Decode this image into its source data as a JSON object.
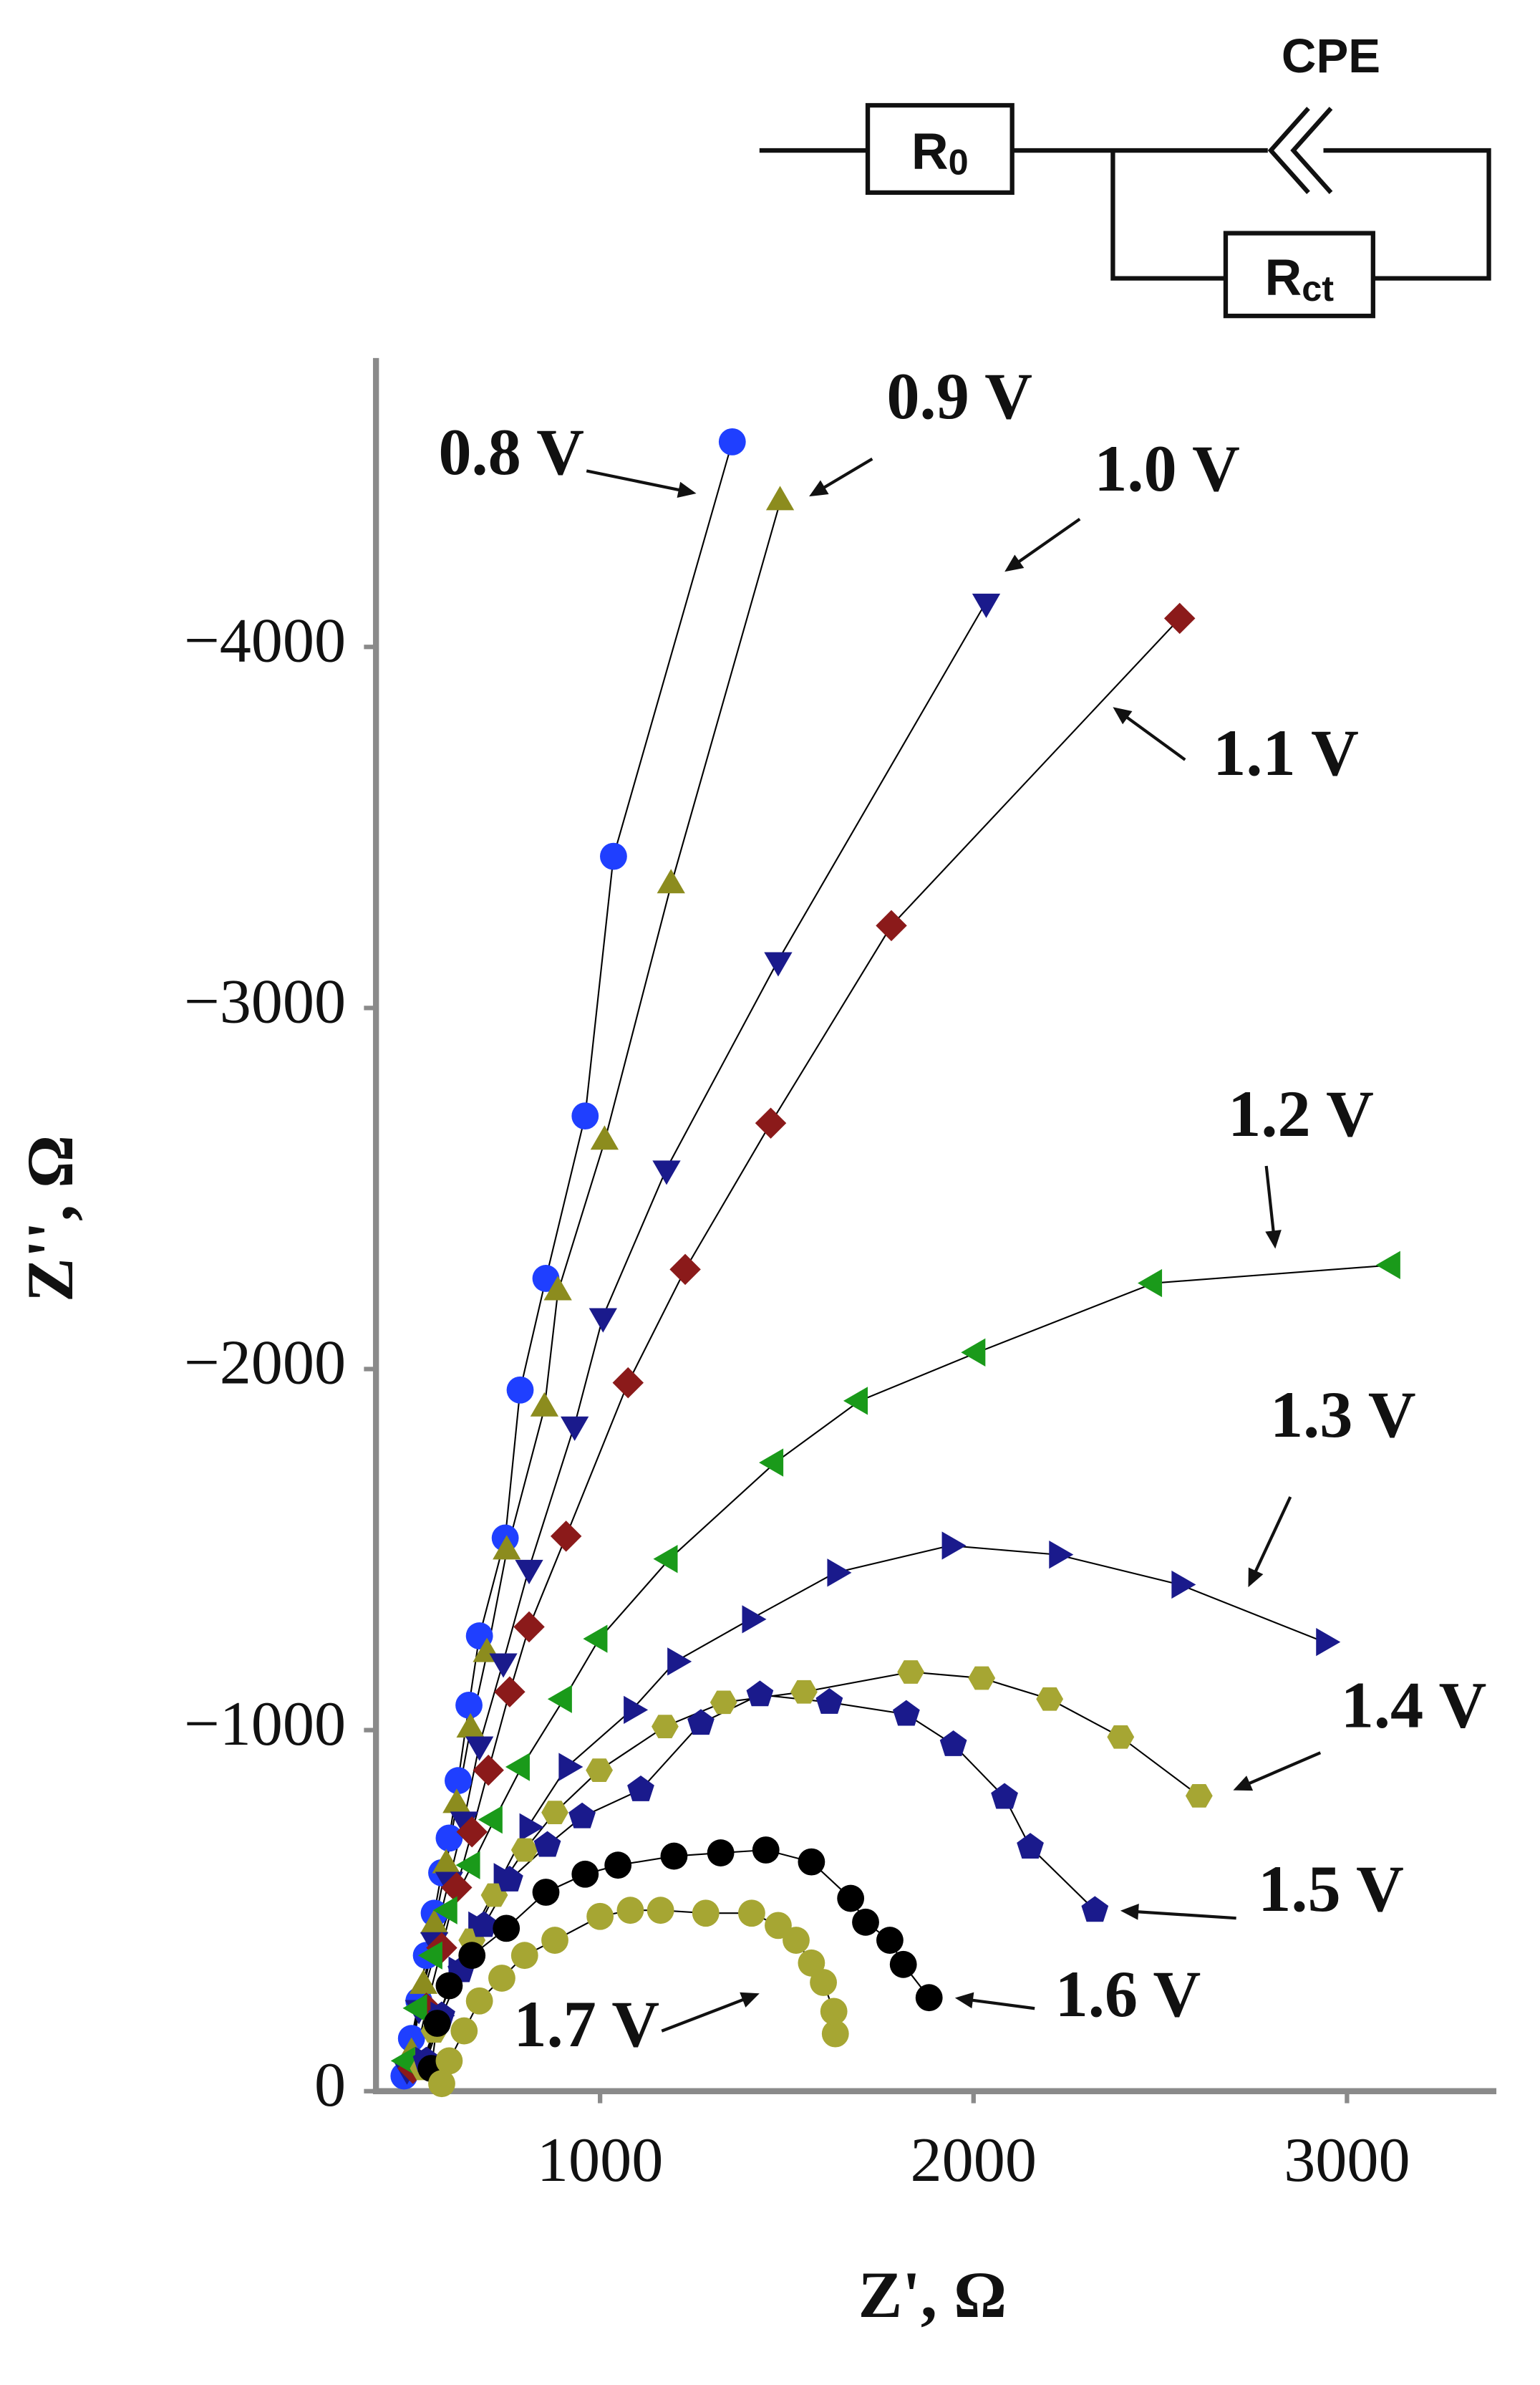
{
  "chart_data": {
    "type": "scatter",
    "xlabel": "Z', Ω",
    "ylabel": "Z'', Ω",
    "xlim": [
      400,
      3400
    ],
    "ylim": [
      0,
      -4800
    ],
    "xticks": [
      1000,
      2000,
      3000
    ],
    "yticks": [
      0,
      {
        "value": -1000,
        "label": "−1000"
      },
      {
        "value": -2000,
        "label": "−2000"
      },
      {
        "value": -3000,
        "label": "−3000"
      },
      {
        "value": -4000,
        "label": "−4000"
      }
    ],
    "fit_line_color": "#000000",
    "series": [
      {
        "name": "0.8 V",
        "color": "#1f3fff",
        "marker": "circle",
        "x": [
          1354,
          1036,
          960,
          855,
          786,
          746,
          677,
          649,
          620,
          596,
          576,
          556,
          535,
          515,
          495,
          475
        ],
        "values": [
          -4568,
          -3420,
          -2701,
          -2251,
          -1942,
          -1532,
          -1261,
          -1069,
          -860,
          -701,
          -605,
          -493,
          -376,
          -250,
          -146,
          -42
        ]
      },
      {
        "name": "0.9 V",
        "color": "#8c8c1e",
        "marker": "triangle-up",
        "x": [
          1482,
          1190,
          1012,
          887,
          851,
          750,
          697,
          653,
          616,
          588,
          556,
          527,
          495
        ],
        "values": [
          -4401,
          -3340,
          -2630,
          -2213,
          -1891,
          -1495,
          -1211,
          -1002,
          -793,
          -626,
          -459,
          -292,
          -104
        ]
      },
      {
        "name": "1.0 V",
        "color": "#1a1a8c",
        "marker": "triangle-down",
        "x": [
          2034,
          1477,
          1178,
          1008,
          932,
          810,
          741,
          677,
          636,
          596,
          556,
          515,
          483
        ],
        "values": [
          -4125,
          -3132,
          -2555,
          -2146,
          -1846,
          -1449,
          -1190,
          -960,
          -752,
          -585,
          -418,
          -230,
          -63
        ]
      },
      {
        "name": "1.1 V",
        "color": "#8b1a1a",
        "marker": "diamond",
        "x": [
          2552,
          1780,
          1457,
          1228,
          1075,
          909,
          810,
          758,
          701,
          657,
          616,
          576,
          535,
          499
        ],
        "values": [
          -4079,
          -3228,
          -2681,
          -2276,
          -1962,
          -1537,
          -1286,
          -1106,
          -889,
          -718,
          -564,
          -397,
          -230,
          -63
        ]
      },
      {
        "name": "1.2 V",
        "color": "#1a9a1a",
        "marker": "triangle-left",
        "x": [
          3121,
          2483,
          2010,
          1695,
          1469,
          1186,
          998,
          903,
          790,
          717,
          657,
          596,
          556,
          515,
          483
        ],
        "values": [
          -2288,
          -2238,
          -2046,
          -1912,
          -1741,
          -1474,
          -1253,
          -1086,
          -898,
          -752,
          -626,
          -501,
          -376,
          -230,
          -84
        ]
      },
      {
        "name": "1.3 V",
        "color": "#1a1a8c",
        "marker": "triangle-right",
        "x": [
          2939,
          2552,
          2224,
          1937,
          1630,
          1402,
          1202,
          1085,
          911,
          806,
          737,
          669,
          616,
          568,
          527
        ],
        "values": [
          -1244,
          -1403,
          -1486,
          -1511,
          -1436,
          -1307,
          -1190,
          -1056,
          -898,
          -731,
          -593,
          -459,
          -334,
          -209,
          -84
        ]
      },
      {
        "name": "1.4 V",
        "color": "#a6a633",
        "marker": "hexagon",
        "x": [
          2604,
          2394,
          2204,
          2022,
          1832,
          1546,
          1331,
          1174,
          998,
          879,
          798,
          717,
          657,
          596,
          556,
          527
        ],
        "values": [
          -818,
          -981,
          -1086,
          -1144,
          -1161,
          -1106,
          -1077,
          -1010,
          -889,
          -772,
          -668,
          -543,
          -418,
          -292,
          -167,
          -63
        ]
      },
      {
        "name": "1.5 V",
        "color": "#1a1a8c",
        "marker": "pentagon",
        "x": [
          2325,
          2152,
          2083,
          1946,
          1820,
          1614,
          1428,
          1270,
          1109,
          952,
          859,
          758,
          689,
          628,
          576,
          535
        ],
        "values": [
          -501,
          -676,
          -814,
          -960,
          -1044,
          -1077,
          -1098,
          -1019,
          -835,
          -760,
          -681,
          -585,
          -459,
          -334,
          -209,
          -84
        ]
      },
      {
        "name": "1.6 V",
        "color": "#000000",
        "marker": "circle",
        "x": [
          1881,
          1812,
          1776,
          1711,
          1671,
          1566,
          1444,
          1323,
          1198,
          1048,
          960,
          855,
          749,
          657,
          596,
          564,
          548
        ],
        "values": [
          -259,
          -351,
          -418,
          -468,
          -534,
          -635,
          -668,
          -660,
          -651,
          -626,
          -601,
          -551,
          -451,
          -376,
          -292,
          -188,
          -63
        ]
      },
      {
        "name": "1.7 V",
        "color": "#a6a633",
        "marker": "circle",
        "x": [
          1630,
          1626,
          1598,
          1566,
          1525,
          1477,
          1406,
          1283,
          1162,
          1081,
          1000,
          879,
          798,
          737,
          677,
          636,
          596,
          576
        ],
        "values": [
          -159,
          -221,
          -301,
          -355,
          -418,
          -459,
          -493,
          -493,
          -501,
          -501,
          -484,
          -418,
          -376,
          -313,
          -250,
          -167,
          -84,
          -21
        ]
      }
    ]
  },
  "circuit": {
    "cpe": "CPE",
    "r0": {
      "main": "R",
      "sub": "0"
    },
    "rct": {
      "main": "R",
      "sub": "ct"
    }
  }
}
